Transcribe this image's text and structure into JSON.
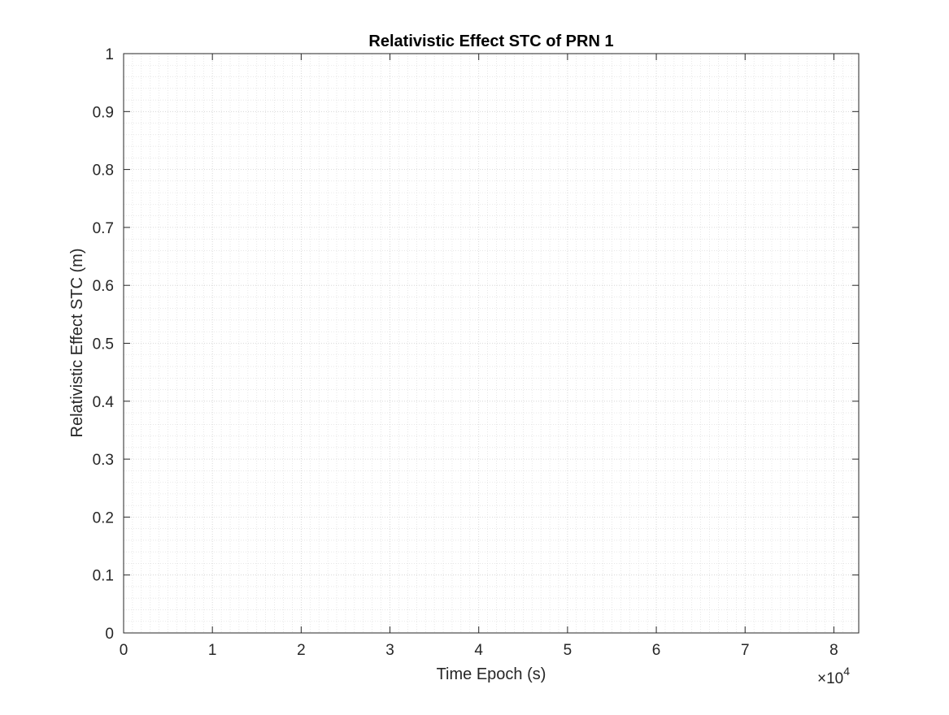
{
  "chart_data": {
    "type": "line",
    "title": "Relativistic Effect STC of PRN 1",
    "xlabel": "Time Epoch (s)",
    "ylabel": "Relativistic Effect STC (m)",
    "x_multiplier": {
      "symbol": "×10",
      "exponent": "4"
    },
    "xlim": [
      0,
      8.28
    ],
    "ylim": [
      0,
      1
    ],
    "x_ticks": [
      {
        "value": 0,
        "label": "0"
      },
      {
        "value": 1,
        "label": "1"
      },
      {
        "value": 2,
        "label": "2"
      },
      {
        "value": 3,
        "label": "3"
      },
      {
        "value": 4,
        "label": "4"
      },
      {
        "value": 5,
        "label": "5"
      },
      {
        "value": 6,
        "label": "6"
      },
      {
        "value": 7,
        "label": "7"
      },
      {
        "value": 8,
        "label": "8"
      }
    ],
    "y_ticks": [
      {
        "value": 0,
        "label": "0"
      },
      {
        "value": 0.1,
        "label": "0.1"
      },
      {
        "value": 0.2,
        "label": "0.2"
      },
      {
        "value": 0.3,
        "label": "0.3"
      },
      {
        "value": 0.4,
        "label": "0.4"
      },
      {
        "value": 0.5,
        "label": "0.5"
      },
      {
        "value": 0.6,
        "label": "0.6"
      },
      {
        "value": 0.7,
        "label": "0.7"
      },
      {
        "value": 0.8,
        "label": "0.8"
      },
      {
        "value": 0.9,
        "label": "0.9"
      },
      {
        "value": 1,
        "label": "1"
      }
    ],
    "grid": true,
    "minor_grid": true,
    "series": []
  },
  "colors": {
    "axis": "#262626",
    "grid": "#d9d9d9",
    "background": "#ffffff"
  }
}
